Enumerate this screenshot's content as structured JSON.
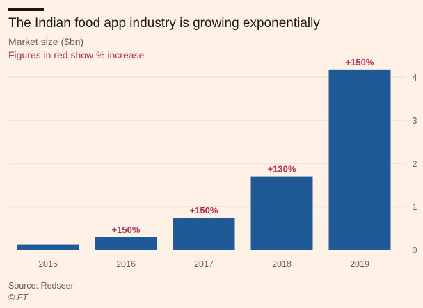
{
  "header": {
    "title": "The Indian food app industry is growing exponentially",
    "subtitle": "Market size ($bn)",
    "note": "Figures in red show % increase"
  },
  "footer": {
    "source": "Source: Redseer",
    "copyright": "© FT"
  },
  "colors": {
    "bar": "#1f5a96",
    "annotation": "#b3325a",
    "grid": "#e3d8cf",
    "axis": "#66605c",
    "baseline": "#33302e"
  },
  "chart_data": {
    "type": "bar",
    "categories": [
      "2015",
      "2016",
      "2017",
      "2018",
      "2019"
    ],
    "values": [
      0.12,
      0.29,
      0.74,
      1.7,
      4.18
    ],
    "annotations": [
      "",
      "+150%",
      "+150%",
      "+130%",
      "+150%"
    ],
    "yticks": [
      0,
      1,
      2,
      3,
      4
    ],
    "ylim": [
      0,
      4.2
    ],
    "ylabel": "Market size ($bn)",
    "y_axis_side": "right",
    "grid": true
  }
}
